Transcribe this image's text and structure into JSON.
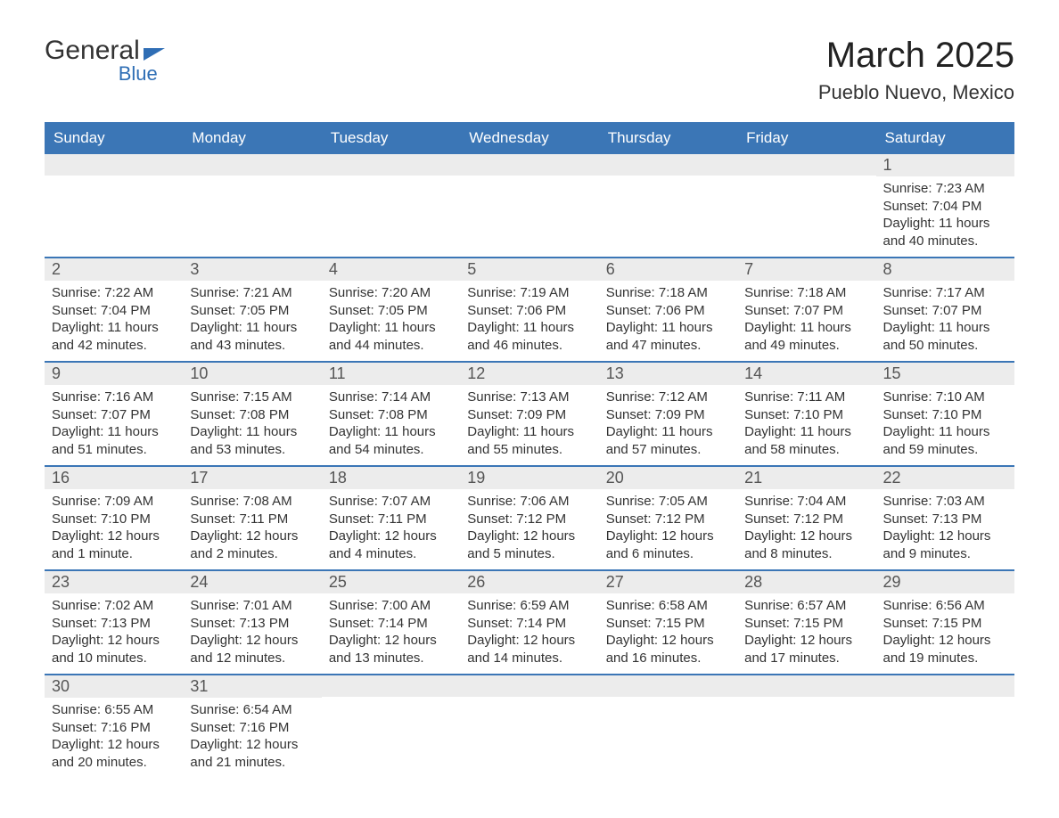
{
  "logo": {
    "line1": "General",
    "line2": "Blue"
  },
  "title": "March 2025",
  "location": "Pueblo Nuevo, Mexico",
  "colors": {
    "header_bg": "#3b76b6",
    "header_text": "#ffffff",
    "row_divider": "#3b76b6",
    "daynum_bg": "#ececec",
    "logo_accent": "#2f6eb5"
  },
  "day_headers": [
    "Sunday",
    "Monday",
    "Tuesday",
    "Wednesday",
    "Thursday",
    "Friday",
    "Saturday"
  ],
  "weeks": [
    [
      null,
      null,
      null,
      null,
      null,
      null,
      {
        "n": "1",
        "sunrise": "7:23 AM",
        "sunset": "7:04 PM",
        "daylight": "11 hours and 40 minutes."
      }
    ],
    [
      {
        "n": "2",
        "sunrise": "7:22 AM",
        "sunset": "7:04 PM",
        "daylight": "11 hours and 42 minutes."
      },
      {
        "n": "3",
        "sunrise": "7:21 AM",
        "sunset": "7:05 PM",
        "daylight": "11 hours and 43 minutes."
      },
      {
        "n": "4",
        "sunrise": "7:20 AM",
        "sunset": "7:05 PM",
        "daylight": "11 hours and 44 minutes."
      },
      {
        "n": "5",
        "sunrise": "7:19 AM",
        "sunset": "7:06 PM",
        "daylight": "11 hours and 46 minutes."
      },
      {
        "n": "6",
        "sunrise": "7:18 AM",
        "sunset": "7:06 PM",
        "daylight": "11 hours and 47 minutes."
      },
      {
        "n": "7",
        "sunrise": "7:18 AM",
        "sunset": "7:07 PM",
        "daylight": "11 hours and 49 minutes."
      },
      {
        "n": "8",
        "sunrise": "7:17 AM",
        "sunset": "7:07 PM",
        "daylight": "11 hours and 50 minutes."
      }
    ],
    [
      {
        "n": "9",
        "sunrise": "7:16 AM",
        "sunset": "7:07 PM",
        "daylight": "11 hours and 51 minutes."
      },
      {
        "n": "10",
        "sunrise": "7:15 AM",
        "sunset": "7:08 PM",
        "daylight": "11 hours and 53 minutes."
      },
      {
        "n": "11",
        "sunrise": "7:14 AM",
        "sunset": "7:08 PM",
        "daylight": "11 hours and 54 minutes."
      },
      {
        "n": "12",
        "sunrise": "7:13 AM",
        "sunset": "7:09 PM",
        "daylight": "11 hours and 55 minutes."
      },
      {
        "n": "13",
        "sunrise": "7:12 AM",
        "sunset": "7:09 PM",
        "daylight": "11 hours and 57 minutes."
      },
      {
        "n": "14",
        "sunrise": "7:11 AM",
        "sunset": "7:10 PM",
        "daylight": "11 hours and 58 minutes."
      },
      {
        "n": "15",
        "sunrise": "7:10 AM",
        "sunset": "7:10 PM",
        "daylight": "11 hours and 59 minutes."
      }
    ],
    [
      {
        "n": "16",
        "sunrise": "7:09 AM",
        "sunset": "7:10 PM",
        "daylight": "12 hours and 1 minute."
      },
      {
        "n": "17",
        "sunrise": "7:08 AM",
        "sunset": "7:11 PM",
        "daylight": "12 hours and 2 minutes."
      },
      {
        "n": "18",
        "sunrise": "7:07 AM",
        "sunset": "7:11 PM",
        "daylight": "12 hours and 4 minutes."
      },
      {
        "n": "19",
        "sunrise": "7:06 AM",
        "sunset": "7:12 PM",
        "daylight": "12 hours and 5 minutes."
      },
      {
        "n": "20",
        "sunrise": "7:05 AM",
        "sunset": "7:12 PM",
        "daylight": "12 hours and 6 minutes."
      },
      {
        "n": "21",
        "sunrise": "7:04 AM",
        "sunset": "7:12 PM",
        "daylight": "12 hours and 8 minutes."
      },
      {
        "n": "22",
        "sunrise": "7:03 AM",
        "sunset": "7:13 PM",
        "daylight": "12 hours and 9 minutes."
      }
    ],
    [
      {
        "n": "23",
        "sunrise": "7:02 AM",
        "sunset": "7:13 PM",
        "daylight": "12 hours and 10 minutes."
      },
      {
        "n": "24",
        "sunrise": "7:01 AM",
        "sunset": "7:13 PM",
        "daylight": "12 hours and 12 minutes."
      },
      {
        "n": "25",
        "sunrise": "7:00 AM",
        "sunset": "7:14 PM",
        "daylight": "12 hours and 13 minutes."
      },
      {
        "n": "26",
        "sunrise": "6:59 AM",
        "sunset": "7:14 PM",
        "daylight": "12 hours and 14 minutes."
      },
      {
        "n": "27",
        "sunrise": "6:58 AM",
        "sunset": "7:15 PM",
        "daylight": "12 hours and 16 minutes."
      },
      {
        "n": "28",
        "sunrise": "6:57 AM",
        "sunset": "7:15 PM",
        "daylight": "12 hours and 17 minutes."
      },
      {
        "n": "29",
        "sunrise": "6:56 AM",
        "sunset": "7:15 PM",
        "daylight": "12 hours and 19 minutes."
      }
    ],
    [
      {
        "n": "30",
        "sunrise": "6:55 AM",
        "sunset": "7:16 PM",
        "daylight": "12 hours and 20 minutes."
      },
      {
        "n": "31",
        "sunrise": "6:54 AM",
        "sunset": "7:16 PM",
        "daylight": "12 hours and 21 minutes."
      },
      null,
      null,
      null,
      null,
      null
    ]
  ],
  "labels": {
    "sunrise": "Sunrise: ",
    "sunset": "Sunset: ",
    "daylight": "Daylight: "
  }
}
